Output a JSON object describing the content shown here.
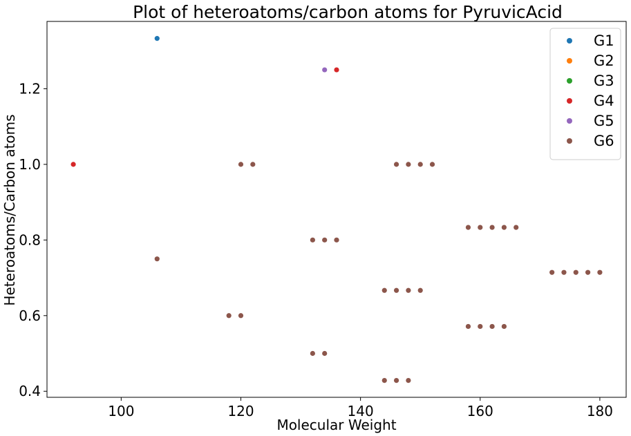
{
  "chart_data": {
    "type": "scatter",
    "title": "Plot of heteroatoms/carbon atoms for PyruvicAcid",
    "xlabel": "Molecular Weight",
    "ylabel": "Heteroatoms/Carbon atoms",
    "xlim": [
      87.6,
      184.4
    ],
    "ylim": [
      0.384,
      1.378
    ],
    "x_ticks": [
      100,
      120,
      140,
      160,
      180
    ],
    "x_tick_labels": [
      "100",
      "120",
      "140",
      "160",
      "180"
    ],
    "y_ticks": [
      0.4,
      0.6,
      0.8,
      1.0,
      1.2
    ],
    "y_tick_labels": [
      "0.4",
      "0.6",
      "0.8",
      "1.0",
      "1.2"
    ],
    "grid": false,
    "legend_position": "top-right",
    "series": [
      {
        "name": "G1",
        "color": "#1f77b4",
        "x": [
          106
        ],
        "y": [
          1.333
        ]
      },
      {
        "name": "G2",
        "color": "#ff7f0e",
        "x": [],
        "y": []
      },
      {
        "name": "G3",
        "color": "#2ca02c",
        "x": [],
        "y": []
      },
      {
        "name": "G4",
        "color": "#d62728",
        "x": [
          92,
          136
        ],
        "y": [
          1.0,
          1.25
        ]
      },
      {
        "name": "G5",
        "color": "#9467bd",
        "x": [
          134
        ],
        "y": [
          1.25
        ]
      },
      {
        "name": "G6",
        "color": "#8c564b",
        "x": [
          106,
          118,
          120,
          120,
          122,
          132,
          134,
          136,
          132,
          134,
          144,
          146,
          148,
          146,
          148,
          150,
          152,
          144,
          146,
          148,
          150,
          158,
          160,
          162,
          164,
          166,
          158,
          160,
          162,
          164,
          172,
          174,
          176,
          178,
          180
        ],
        "y": [
          0.75,
          0.6,
          0.6,
          1.0,
          1.0,
          0.8,
          0.8,
          0.8,
          0.5,
          0.5,
          0.4286,
          0.4286,
          0.4286,
          1.0,
          1.0,
          1.0,
          1.0,
          0.6667,
          0.6667,
          0.6667,
          0.6667,
          0.8333,
          0.8333,
          0.8333,
          0.8333,
          0.8333,
          0.5714,
          0.5714,
          0.5714,
          0.5714,
          0.7143,
          0.7143,
          0.7143,
          0.7143,
          0.7143
        ]
      }
    ]
  }
}
